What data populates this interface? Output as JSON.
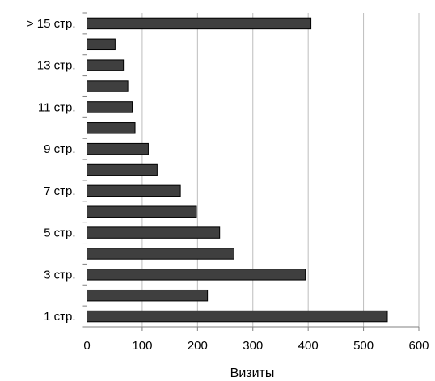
{
  "chart_data": {
    "type": "bar",
    "orientation": "horizontal",
    "categories": [
      "1 стр.",
      "",
      "3 стр.",
      "",
      "5 стр.",
      "",
      "7 стр.",
      "",
      "9 стр.",
      "",
      "11 стр.",
      "",
      "13 стр.",
      "",
      "> 15 стр."
    ],
    "values": [
      543,
      218,
      395,
      266,
      240,
      198,
      169,
      127,
      111,
      87,
      82,
      74,
      66,
      51,
      405
    ],
    "xlabel": "Визиты",
    "ylabel": "",
    "title": "",
    "xlim": [
      0,
      600
    ],
    "xticks": [
      "0",
      "100",
      "200",
      "300",
      "400",
      "500",
      "600"
    ],
    "grid": "vertical",
    "legend": "none",
    "colors": {
      "bar": "#3f3f3f",
      "bar_edge": "#000000",
      "grid": "#bdbdbd",
      "axis": "#808080"
    }
  }
}
